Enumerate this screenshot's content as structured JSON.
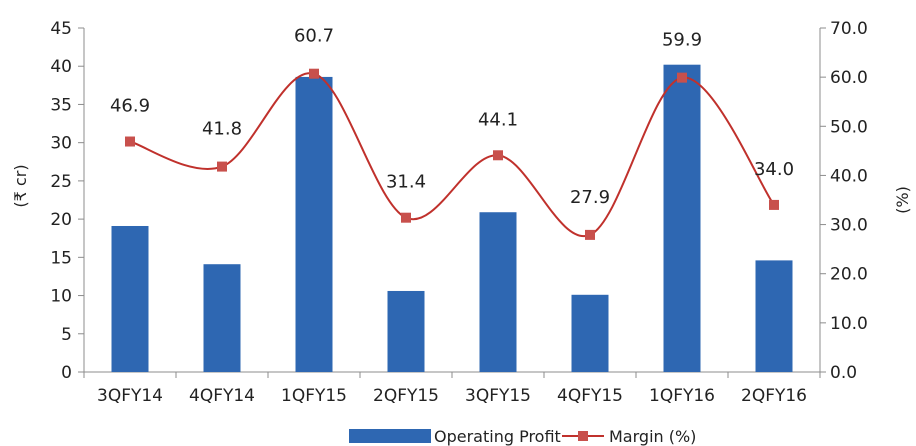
{
  "chart_data": {
    "type": "bar+line",
    "categories": [
      "3QFY14",
      "4QFY14",
      "1QFY15",
      "2QFY15",
      "3QFY15",
      "4QFY15",
      "1QFY16",
      "2QFY16"
    ],
    "series": [
      {
        "name": "Operating Profit",
        "type": "bar",
        "axis": "left",
        "color": "#2e67b2",
        "values": [
          19.1,
          14.1,
          38.6,
          10.6,
          20.9,
          10.1,
          40.2,
          14.6
        ]
      },
      {
        "name": "Margin (%)",
        "type": "line",
        "axis": "right",
        "color": "#c0312c",
        "marker_color": "#c8504c",
        "values": [
          46.9,
          41.8,
          60.7,
          31.4,
          44.1,
          27.9,
          59.9,
          34.0
        ],
        "data_labels": [
          "46.9",
          "41.8",
          "60.7",
          "31.4",
          "44.1",
          "27.9",
          "59.9",
          "34.0"
        ]
      }
    ],
    "y_left": {
      "label": "(₹ cr)",
      "ylim": [
        0,
        45
      ],
      "ticks": [
        "0",
        "5",
        "10",
        "15",
        "20",
        "25",
        "30",
        "35",
        "40",
        "45"
      ]
    },
    "y_right": {
      "label": "(%)",
      "ylim": [
        0,
        70
      ],
      "ticks": [
        "0.0",
        "10.0",
        "20.0",
        "30.0",
        "40.0",
        "50.0",
        "60.0",
        "70.0"
      ]
    },
    "grid": false,
    "legend_position": "bottom-center"
  }
}
